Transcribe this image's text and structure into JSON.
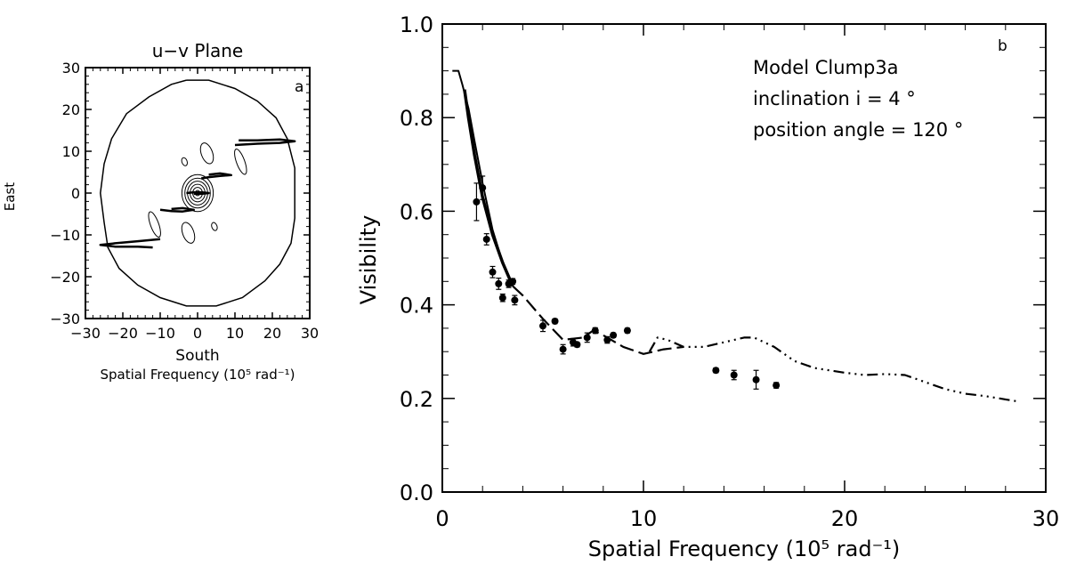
{
  "chart_data": [
    {
      "type": "contour",
      "panel_label": "a",
      "title": "u−v Plane",
      "xlabel": "South",
      "xlabel2": "Spatial Frequency (10⁵ rad⁻¹)",
      "ylabel": "East",
      "xlim": [
        -30,
        30
      ],
      "ylim": [
        -30,
        30
      ],
      "xticks": [
        -30,
        -20,
        -10,
        0,
        10,
        20,
        30
      ],
      "yticks": [
        -30,
        -20,
        -10,
        0,
        10,
        20,
        30
      ],
      "xtick_labels": [
        "−30",
        "−20",
        "−10",
        "0",
        "10",
        "20",
        "30"
      ],
      "ytick_labels": [
        "−30",
        "−20",
        "−10",
        "0",
        "10",
        "20",
        "30"
      ],
      "outer_contour": [
        [
          -3,
          27
        ],
        [
          3,
          27
        ],
        [
          10,
          25
        ],
        [
          16,
          22
        ],
        [
          21,
          18
        ],
        [
          24,
          13
        ],
        [
          26,
          6
        ],
        [
          26,
          0
        ],
        [
          26,
          -6
        ],
        [
          25,
          -12
        ],
        [
          22,
          -17
        ],
        [
          18,
          -21
        ],
        [
          12,
          -25
        ],
        [
          5,
          -27
        ],
        [
          -3,
          -27
        ],
        [
          -10,
          -25
        ],
        [
          -16,
          -22
        ],
        [
          -21,
          -18
        ],
        [
          -24,
          -13
        ],
        [
          -25,
          -7
        ],
        [
          -26,
          0
        ],
        [
          -25,
          7
        ],
        [
          -23,
          13
        ],
        [
          -19,
          19
        ],
        [
          -13,
          23
        ],
        [
          -7,
          26
        ],
        [
          -3,
          27
        ]
      ],
      "central_contour_radii": [
        0.6,
        1.3,
        2.0,
        2.7,
        3.4,
        4.2
      ],
      "uv_tracks": [
        {
          "name": "track1",
          "points": [
            [
              10,
              11.5
            ],
            [
              16,
              11.8
            ],
            [
              22,
              12
            ],
            [
              26,
              12.4
            ],
            [
              22,
              12.8
            ],
            [
              16,
              12.6
            ],
            [
              11,
              12.6
            ]
          ]
        },
        {
          "name": "track2",
          "points": [
            [
              1,
              3.5
            ],
            [
              3,
              3.8
            ],
            [
              6,
              4.1
            ],
            [
              9,
              4.3
            ],
            [
              6,
              4.7
            ],
            [
              3,
              4.4
            ]
          ]
        },
        {
          "name": "track3",
          "points": [
            [
              -10,
              -4
            ],
            [
              -7,
              -4.3
            ],
            [
              -4,
              -4.4
            ],
            [
              -1,
              -4
            ],
            [
              -4,
              -3.6
            ],
            [
              -7,
              -3.8
            ]
          ]
        },
        {
          "name": "track4",
          "points": [
            [
              -10,
              -11
            ],
            [
              -16,
              -11.5
            ],
            [
              -22,
              -12
            ],
            [
              -26,
              -12.4
            ],
            [
              -22,
              -12.8
            ],
            [
              -16,
              -12.8
            ],
            [
              -12,
              -13
            ]
          ]
        },
        {
          "name": "track5",
          "points": [
            [
              -3,
              0
            ],
            [
              -1,
              0.2
            ],
            [
              1,
              0.2
            ],
            [
              3,
              0
            ],
            [
              1,
              -0.2
            ],
            [
              -1,
              -0.2
            ]
          ]
        }
      ],
      "small_contours": [
        {
          "cx": -3.5,
          "cy": 7.5,
          "rx": 0.7,
          "ry": 1.0
        },
        {
          "cx": 2.5,
          "cy": 9.5,
          "rx": 1.5,
          "ry": 2.6
        },
        {
          "cx": 11.5,
          "cy": 7.5,
          "rx": 1.1,
          "ry": 3.2
        },
        {
          "cx": -11.5,
          "cy": -7.5,
          "rx": 1.1,
          "ry": 3.2
        },
        {
          "cx": -2.5,
          "cy": -9.5,
          "rx": 1.5,
          "ry": 2.6
        },
        {
          "cx": 4.5,
          "cy": -8.0,
          "rx": 0.7,
          "ry": 1.0
        }
      ]
    },
    {
      "type": "line",
      "panel_label": "b",
      "xlabel": "Spatial Frequency (10⁵ rad⁻¹)",
      "ylabel": "Visibility",
      "xlim": [
        0,
        30
      ],
      "ylim": [
        0.0,
        1.0
      ],
      "xticks": [
        0,
        10,
        20,
        30
      ],
      "yticks": [
        0.0,
        0.2,
        0.4,
        0.6,
        0.8,
        1.0
      ],
      "xtick_labels": [
        "0",
        "10",
        "20",
        "30"
      ],
      "ytick_labels": [
        "0.0",
        "0.2",
        "0.4",
        "0.6",
        "0.8",
        "1.0"
      ],
      "annotation": [
        "Model Clump3a",
        "inclination i =   4 °",
        "position angle = 120 °"
      ],
      "series": [
        {
          "style": "solid-thin",
          "x": [
            0.5,
            0.8,
            1.0,
            1.3,
            1.6,
            2.0,
            2.5,
            3.0,
            3.4
          ],
          "y": [
            0.9,
            0.9,
            0.87,
            0.82,
            0.75,
            0.66,
            0.56,
            0.49,
            0.45
          ]
        },
        {
          "style": "solid-thick",
          "x": [
            1.1,
            1.3,
            1.6,
            2.0,
            2.5,
            3.0,
            3.5
          ],
          "y": [
            0.86,
            0.8,
            0.72,
            0.63,
            0.55,
            0.49,
            0.44
          ]
        },
        {
          "style": "dashed",
          "x": [
            3.5,
            4.0,
            5.0,
            6.0,
            7.0,
            7.5,
            8.0,
            9.0,
            10.0,
            11.0,
            12.0
          ],
          "y": [
            0.44,
            0.42,
            0.37,
            0.325,
            0.33,
            0.345,
            0.335,
            0.31,
            0.295,
            0.305,
            0.31
          ]
        },
        {
          "style": "dash-dot",
          "x": [
            10.3,
            10.7,
            11.2,
            12.0,
            13.0,
            14.0,
            15.0,
            15.5,
            16.5,
            17.5,
            18.5,
            20.0,
            21.0,
            22.0,
            23.0,
            24.0,
            25.0,
            26.0,
            27.0,
            28.0,
            28.7
          ],
          "y": [
            0.3,
            0.33,
            0.325,
            0.31,
            0.31,
            0.32,
            0.33,
            0.33,
            0.31,
            0.28,
            0.265,
            0.255,
            0.25,
            0.252,
            0.25,
            0.235,
            0.22,
            0.21,
            0.205,
            0.198,
            0.193
          ]
        }
      ],
      "measurements": [
        {
          "x": 1.7,
          "y": 0.62,
          "err": 0.04
        },
        {
          "x": 2.0,
          "y": 0.65,
          "err": 0.025
        },
        {
          "x": 2.2,
          "y": 0.54,
          "err": 0.012
        },
        {
          "x": 2.5,
          "y": 0.47,
          "err": 0.012
        },
        {
          "x": 2.8,
          "y": 0.445,
          "err": 0.012
        },
        {
          "x": 3.0,
          "y": 0.415,
          "err": 0.008
        },
        {
          "x": 3.3,
          "y": 0.445,
          "err": 0.008
        },
        {
          "x": 3.6,
          "y": 0.41,
          "err": 0.01
        },
        {
          "x": 3.5,
          "y": 0.45,
          "err": 0.006
        },
        {
          "x": 5.0,
          "y": 0.355,
          "err": 0.012
        },
        {
          "x": 5.6,
          "y": 0.365,
          "err": 0.005
        },
        {
          "x": 6.0,
          "y": 0.305,
          "err": 0.01
        },
        {
          "x": 6.5,
          "y": 0.32,
          "err": 0.008
        },
        {
          "x": 6.7,
          "y": 0.315,
          "err": 0.005
        },
        {
          "x": 7.2,
          "y": 0.33,
          "err": 0.01
        },
        {
          "x": 7.6,
          "y": 0.345,
          "err": 0.006
        },
        {
          "x": 8.2,
          "y": 0.325,
          "err": 0.007
        },
        {
          "x": 8.5,
          "y": 0.335,
          "err": 0.005
        },
        {
          "x": 9.2,
          "y": 0.345,
          "err": 0.005
        },
        {
          "x": 13.6,
          "y": 0.26,
          "err": 0.005
        },
        {
          "x": 14.5,
          "y": 0.25,
          "err": 0.01
        },
        {
          "x": 15.6,
          "y": 0.24,
          "err": 0.02
        },
        {
          "x": 16.6,
          "y": 0.228,
          "err": 0.006
        }
      ]
    }
  ]
}
